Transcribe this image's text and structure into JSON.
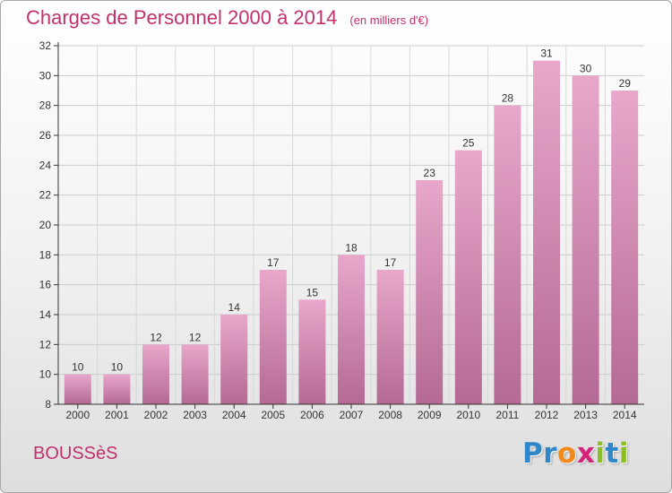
{
  "title": "Charges de Personnel 2000 à 2014",
  "subtitle": "(en milliers d'€)",
  "town": "BOUSSèS",
  "logo": {
    "text": "Proxiti",
    "letters": [
      {
        "ch": "P",
        "color": "#2f86c8"
      },
      {
        "ch": "r",
        "color": "#2f86c8"
      },
      {
        "ch": "o",
        "color": "#f08a1c"
      },
      {
        "ch": "x",
        "color": "#d6237a"
      },
      {
        "ch": "i",
        "color": "#8cbf26"
      },
      {
        "ch": "t",
        "color": "#2f86c8"
      },
      {
        "ch": "i",
        "color": "#8cbf26"
      }
    ]
  },
  "colors": {
    "accent": "#c0316e",
    "bar_top": "#e8a7cb",
    "bar_bottom": "#b46a93",
    "grid": "#cccccc"
  },
  "chart_data": {
    "type": "bar",
    "categories": [
      "2000",
      "2001",
      "2002",
      "2003",
      "2004",
      "2005",
      "2006",
      "2007",
      "2008",
      "2009",
      "2010",
      "2011",
      "2012",
      "2013",
      "2014"
    ],
    "values": [
      10,
      10,
      12,
      12,
      14,
      17,
      15,
      18,
      17,
      23,
      25,
      28,
      31,
      30,
      29
    ],
    "ylim": [
      8,
      32
    ],
    "yticks": [
      8,
      10,
      12,
      14,
      16,
      18,
      20,
      22,
      24,
      26,
      28,
      30,
      32
    ],
    "grid": true,
    "data_labels": true
  }
}
